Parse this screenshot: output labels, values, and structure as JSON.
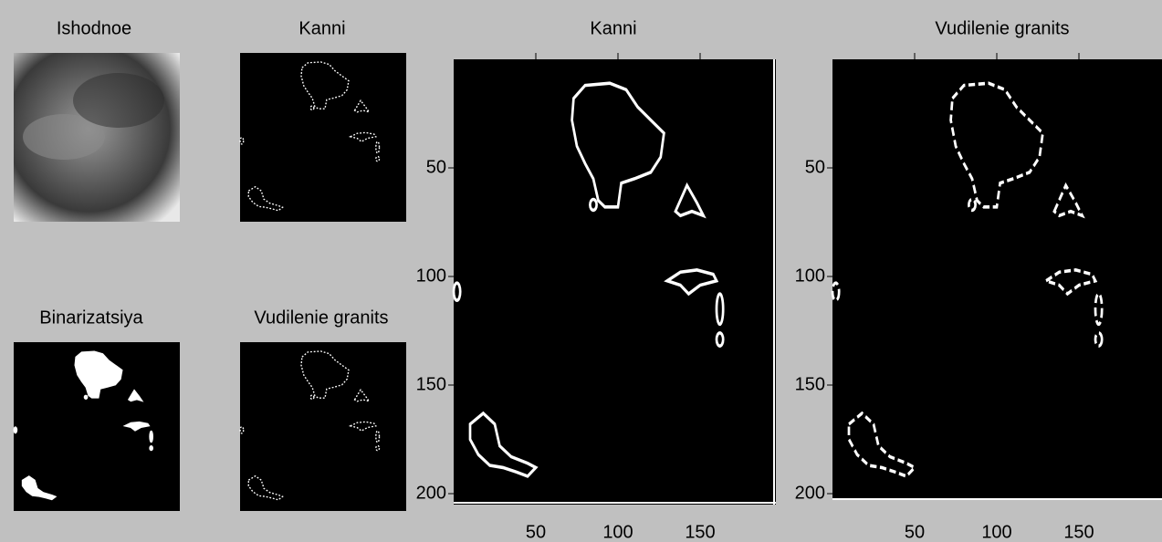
{
  "panels": [
    {
      "title": "Ishodnoe"
    },
    {
      "title": "Kanni"
    },
    {
      "title": "Binarizatsiya"
    },
    {
      "title": "Vudilenie granits"
    },
    {
      "title": "Kanni",
      "xticks": [
        50,
        100,
        150
      ],
      "yticks": [
        50,
        100,
        150,
        200
      ]
    },
    {
      "title": "Vudilenie granits",
      "xticks": [
        50,
        100,
        150
      ],
      "yticks": [
        50,
        100,
        150,
        200
      ]
    }
  ]
}
